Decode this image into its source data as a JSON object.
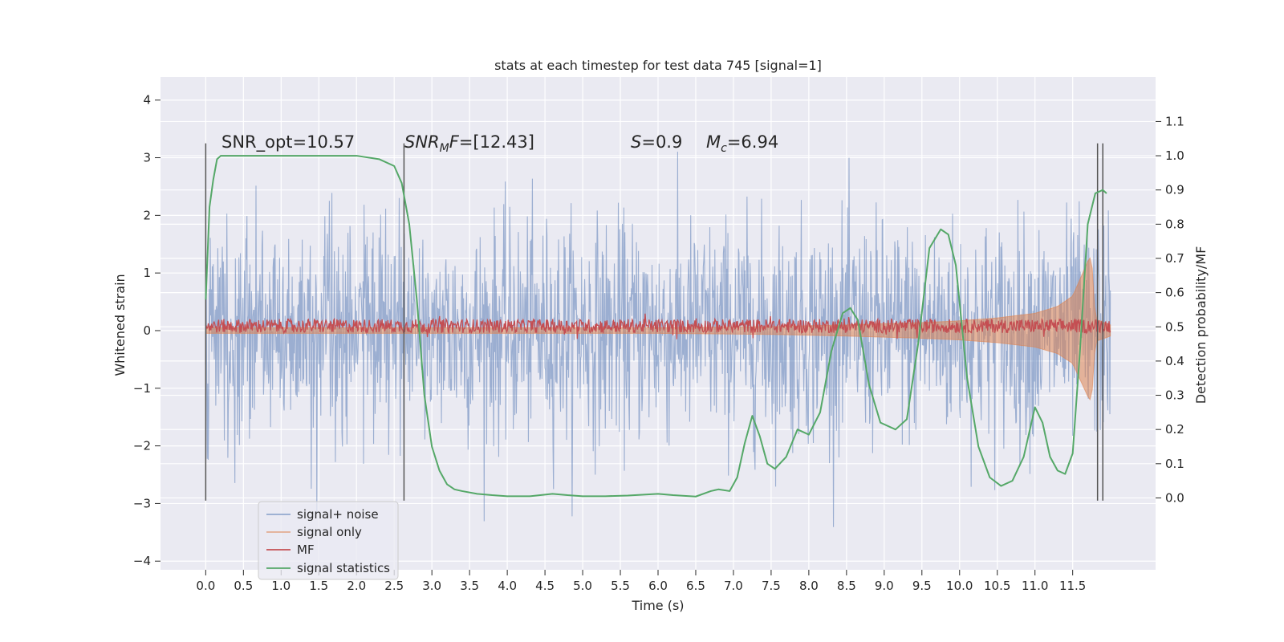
{
  "chart_data": {
    "type": "line",
    "title": "stats at each timestep for test data 745 [signal=1]",
    "xlabel": "Time (s)",
    "ylabel": "Whitened strain",
    "ylabel_right": "Detection probability/MF",
    "xlim": [
      -0.6,
      12.6
    ],
    "ylim": [
      -4.15,
      4.4
    ],
    "ylim_right": [
      -0.21,
      1.23
    ],
    "x_ticks": [
      "0.0",
      "0.5",
      "1.0",
      "1.5",
      "2.0",
      "2.5",
      "3.0",
      "3.5",
      "4.0",
      "4.5",
      "5.0",
      "5.5",
      "6.0",
      "6.5",
      "7.0",
      "7.5",
      "8.0",
      "8.5",
      "9.0",
      "9.5",
      "10.0",
      "10.5",
      "11.0",
      "11.5"
    ],
    "y_ticks": [
      "4",
      "3",
      "2",
      "1",
      "0",
      "−1",
      "−2",
      "−3",
      "−4"
    ],
    "y_ticks_right": [
      "1.1",
      "1.0",
      "0.9",
      "0.8",
      "0.7",
      "0.6",
      "0.5",
      "0.4",
      "0.3",
      "0.2",
      "0.1",
      "0.0"
    ],
    "grid": true,
    "legend": {
      "placement": "lower-left",
      "entries": [
        "signal+ noise",
        "signal only",
        "MF",
        "signal statistics"
      ]
    },
    "annotations": {
      "snr_opt": "SNR_opt=10.57",
      "snr_mf_prefix": "SNR",
      "snr_mf_sub": "M",
      "snr_mf_suffix": "F=[12.43]",
      "s_symbol": "S",
      "s_value": "=0.9",
      "mc_symbol": "M",
      "mc_sub": "c",
      "mc_value": "=6.94"
    },
    "colors": {
      "background": "#eaeaf2",
      "grid": "#ffffff",
      "signal_noise": "#4c72b0",
      "signal_only": "#dd8452",
      "mf": "#c44e52",
      "signal_statistics": "#55a868",
      "vlines": "#555555"
    },
    "series": [
      {
        "name": "signal+ noise",
        "description_values": "whitened noise, bulk amplitude ~±1.3, peaks ~±3.5",
        "x_range": [
          0.0,
          12.0
        ],
        "envelope_upper": [
          [
            0.0,
            2.2
          ],
          [
            0.5,
            2.8
          ],
          [
            1.0,
            2.9
          ],
          [
            1.5,
            3.8
          ],
          [
            2.0,
            2.9
          ],
          [
            2.5,
            3.1
          ],
          [
            3.0,
            2.8
          ],
          [
            3.5,
            3.0
          ],
          [
            4.0,
            3.2
          ],
          [
            4.5,
            3.3
          ],
          [
            5.0,
            3.0
          ],
          [
            5.5,
            3.9
          ],
          [
            6.0,
            3.0
          ],
          [
            6.5,
            3.2
          ],
          [
            7.0,
            3.0
          ],
          [
            7.5,
            3.2
          ],
          [
            8.0,
            3.0
          ],
          [
            8.5,
            3.8
          ],
          [
            9.0,
            4.1
          ],
          [
            9.5,
            3.2
          ],
          [
            10.0,
            3.0
          ],
          [
            10.5,
            3.3
          ],
          [
            11.0,
            3.2
          ],
          [
            11.5,
            3.6
          ],
          [
            12.0,
            2.0
          ]
        ],
        "envelope_lower": [
          [
            0.0,
            -2.2
          ],
          [
            0.5,
            -2.8
          ],
          [
            1.0,
            -3.1
          ],
          [
            1.5,
            -3.3
          ],
          [
            2.0,
            -3.0
          ],
          [
            2.5,
            -3.2
          ],
          [
            3.0,
            -3.6
          ],
          [
            3.5,
            -3.6
          ],
          [
            4.0,
            -3.4
          ],
          [
            4.5,
            -3.1
          ],
          [
            5.0,
            -3.3
          ],
          [
            5.5,
            -3.2
          ],
          [
            6.0,
            -3.3
          ],
          [
            6.5,
            -3.5
          ],
          [
            7.0,
            -3.0
          ],
          [
            7.5,
            -3.1
          ],
          [
            8.0,
            -3.8
          ],
          [
            8.5,
            -3.2
          ],
          [
            9.0,
            -3.1
          ],
          [
            9.5,
            -3.3
          ],
          [
            10.0,
            -3.7
          ],
          [
            10.5,
            -3.3
          ],
          [
            11.0,
            -3.6
          ],
          [
            11.5,
            -3.0
          ],
          [
            12.0,
            -1.6
          ]
        ]
      },
      {
        "name": "signal only",
        "envelope": [
          [
            0.0,
            0.05
          ],
          [
            6.0,
            0.05
          ],
          [
            7.5,
            0.07
          ],
          [
            8.5,
            0.1
          ],
          [
            9.5,
            0.14
          ],
          [
            10.0,
            0.17
          ],
          [
            10.5,
            0.22
          ],
          [
            11.0,
            0.3
          ],
          [
            11.3,
            0.42
          ],
          [
            11.5,
            0.6
          ],
          [
            11.7,
            1.2
          ],
          [
            11.75,
            1.3
          ],
          [
            11.8,
            0.2
          ],
          [
            12.0,
            0.1
          ]
        ]
      },
      {
        "name": "MF",
        "baseline": 0.08,
        "spread": 0.12
      },
      {
        "name": "signal statistics",
        "x": [
          0.0,
          0.05,
          0.1,
          0.15,
          0.2,
          0.3,
          0.5,
          1.0,
          1.5,
          2.0,
          2.3,
          2.5,
          2.6,
          2.7,
          2.8,
          2.9,
          3.0,
          3.1,
          3.2,
          3.3,
          3.4,
          3.6,
          3.8,
          4.0,
          4.3,
          4.6,
          4.8,
          5.0,
          5.3,
          5.6,
          6.0,
          6.2,
          6.5,
          6.7,
          6.8,
          6.95,
          7.05,
          7.15,
          7.25,
          7.35,
          7.45,
          7.55,
          7.7,
          7.85,
          8.0,
          8.15,
          8.3,
          8.45,
          8.55,
          8.65,
          8.8,
          8.95,
          9.15,
          9.3,
          9.45,
          9.6,
          9.75,
          9.85,
          9.95,
          10.1,
          10.25,
          10.4,
          10.55,
          10.7,
          10.85,
          11.0,
          11.1,
          11.2,
          11.3,
          11.4,
          11.5,
          11.6,
          11.7,
          11.8,
          11.9,
          11.95
        ],
        "values": [
          0.58,
          0.85,
          0.93,
          0.99,
          1.0,
          1.0,
          1.0,
          1.0,
          1.0,
          1.0,
          0.99,
          0.97,
          0.92,
          0.8,
          0.58,
          0.3,
          0.15,
          0.08,
          0.04,
          0.025,
          0.02,
          0.012,
          0.008,
          0.005,
          0.005,
          0.012,
          0.008,
          0.005,
          0.005,
          0.007,
          0.012,
          0.008,
          0.004,
          0.02,
          0.025,
          0.02,
          0.06,
          0.16,
          0.24,
          0.18,
          0.1,
          0.085,
          0.12,
          0.2,
          0.185,
          0.25,
          0.43,
          0.54,
          0.555,
          0.52,
          0.33,
          0.22,
          0.2,
          0.23,
          0.45,
          0.73,
          0.785,
          0.77,
          0.68,
          0.35,
          0.15,
          0.06,
          0.035,
          0.05,
          0.12,
          0.265,
          0.22,
          0.12,
          0.08,
          0.07,
          0.13,
          0.44,
          0.8,
          0.89,
          0.9,
          0.89
        ]
      }
    ],
    "vertical_lines": [
      {
        "x": 0.0,
        "y0": -2.95,
        "y1": 3.25
      },
      {
        "x": 2.63,
        "y0": -2.95,
        "y1": 3.25
      },
      {
        "x": 11.83,
        "y0": -2.95,
        "y1": 3.25
      },
      {
        "x": 11.9,
        "y0": -2.95,
        "y1": 3.25
      }
    ]
  }
}
